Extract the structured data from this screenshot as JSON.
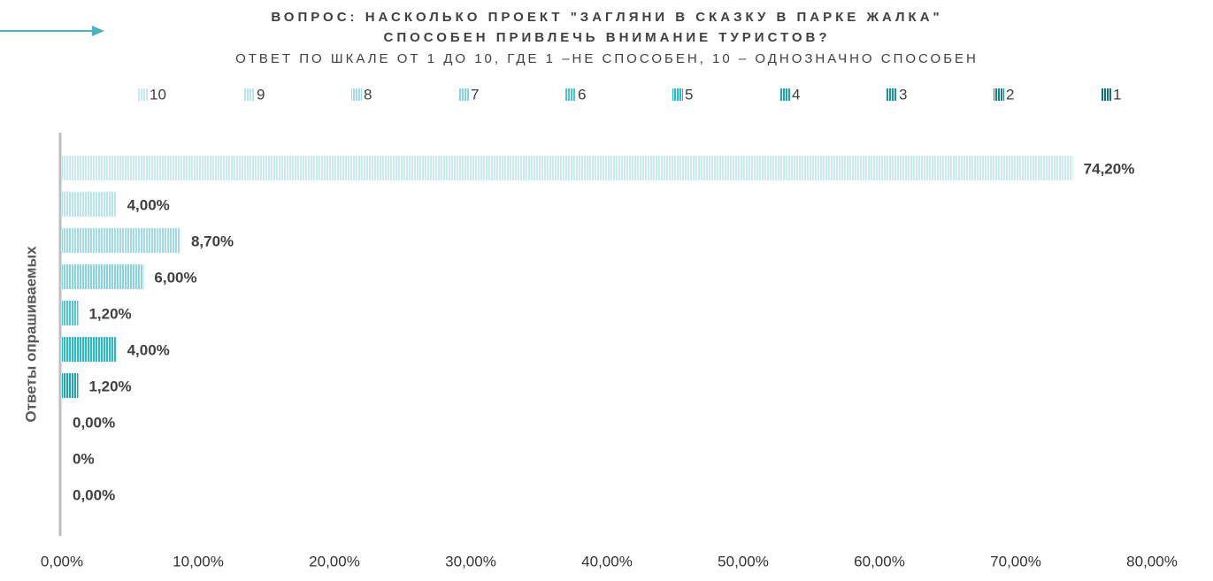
{
  "chart_data": {
    "type": "bar",
    "orientation": "horizontal",
    "title": [
      "ВОПРОС: НАСКОЛЬКО ПРОЕКТ \"ЗАГЛЯНИ В СКАЗКУ В ПАРКЕ ЖАЛКА\"",
      "СПОСОБЕН ПРИВЛЕЧЬ ВНИМАНИЕ ТУРИСТОВ?"
    ],
    "subtitle": "ОТВЕТ ПО ШКАЛЕ ОТ 1 ДО 10, ГДЕ 1 –НЕ СПОСОБЕН, 10 – ОДНОЗНАЧНО СПОСОБЕН",
    "y_label": "Ответы опрашиваемых",
    "series": [
      {
        "name": "10",
        "color": "#c9ebf0",
        "values": [
          74.2
        ],
        "value_labels": [
          "74,20%"
        ]
      },
      {
        "name": "9",
        "color": "#b6e5ec",
        "values": [
          4
        ],
        "value_labels": [
          "4,00%"
        ]
      },
      {
        "name": "8",
        "color": "#9fdde6",
        "values": [
          8.7
        ],
        "value_labels": [
          "8,70%"
        ]
      },
      {
        "name": "7",
        "color": "#84d5e0",
        "values": [
          6
        ],
        "value_labels": [
          "6,00%"
        ]
      },
      {
        "name": "6",
        "color": "#4cc8d5",
        "values": [
          1.2
        ],
        "value_labels": [
          "1,20%"
        ]
      },
      {
        "name": "5",
        "color": "#1cbfcc",
        "values": [
          4
        ],
        "value_labels": [
          "4,00%"
        ]
      },
      {
        "name": "4",
        "color": "#17a9b3",
        "values": [
          1.2
        ],
        "value_labels": [
          "1,20%"
        ]
      },
      {
        "name": "3",
        "color": "#14979e",
        "values": [
          0
        ],
        "value_labels": [
          "0,00%"
        ]
      },
      {
        "name": "2",
        "color": "#11858a",
        "values": [
          0
        ],
        "value_labels": [
          "0%"
        ]
      },
      {
        "name": "1",
        "color": "#0e7276",
        "values": [
          0
        ],
        "value_labels": [
          "0,00%"
        ]
      }
    ],
    "xlim": [
      0,
      80
    ],
    "xticks": [
      {
        "value": 0,
        "label": "0,00%"
      },
      {
        "value": 10,
        "label": "10,00%"
      },
      {
        "value": 20,
        "label": "20,00%"
      },
      {
        "value": 30,
        "label": "30,00%"
      },
      {
        "value": 40,
        "label": "40,00%"
      },
      {
        "value": 50,
        "label": "50,00%"
      },
      {
        "value": 60,
        "label": "60,00%"
      },
      {
        "value": 70,
        "label": "70,00%"
      },
      {
        "value": 80,
        "label": "80,00%"
      }
    ],
    "grid": false,
    "legend": "top"
  }
}
